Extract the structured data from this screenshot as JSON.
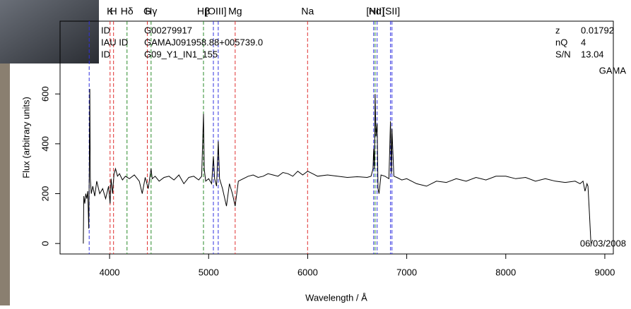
{
  "chart_data": {
    "type": "line",
    "xlabel": "Wavelength / Å",
    "ylabel": "Flux (arbitrary units)",
    "xlim": [
      3500,
      9086
    ],
    "ylim": [
      -42,
      892
    ],
    "xticks": [
      4000,
      5000,
      6000,
      7000,
      8000,
      9000
    ],
    "yticks": [
      0,
      200,
      400,
      600
    ],
    "color": "#000000",
    "x": [
      3735,
      3740,
      3750,
      3760,
      3770,
      3780,
      3790,
      3795,
      3800,
      3805,
      3815,
      3830,
      3850,
      3870,
      3900,
      3930,
      3960,
      3990,
      4005,
      4015,
      4030,
      4045,
      4060,
      4080,
      4100,
      4130,
      4160,
      4200,
      4250,
      4300,
      4330,
      4360,
      4390,
      4419,
      4430,
      4460,
      4500,
      4550,
      4600,
      4650,
      4700,
      4750,
      4800,
      4850,
      4900,
      4930,
      4948,
      4955,
      4970,
      5000,
      5030,
      5048,
      5060,
      5080,
      5097,
      5110,
      5140,
      5180,
      5210,
      5240,
      5268,
      5300,
      5350,
      5400,
      5450,
      5500,
      5550,
      5600,
      5650,
      5700,
      5750,
      5800,
      5850,
      5900,
      5950,
      6000,
      6050,
      6100,
      6200,
      6300,
      6400,
      6500,
      6600,
      6640,
      6660,
      6666,
      6675,
      6681,
      6690,
      6701,
      6710,
      6720,
      6740,
      6780,
      6820,
      6836,
      6845,
      6851,
      6870,
      6900,
      6950,
      7000,
      7100,
      7200,
      7300,
      7400,
      7500,
      7600,
      7700,
      7800,
      7900,
      8000,
      8100,
      8200,
      8300,
      8400,
      8500,
      8600,
      8700,
      8750,
      8780,
      8800,
      8820,
      8830,
      8845,
      8860
    ],
    "values": [
      0,
      190,
      160,
      200,
      180,
      210,
      60,
      300,
      620,
      260,
      200,
      230,
      190,
      250,
      200,
      220,
      180,
      230,
      160,
      260,
      200,
      280,
      300,
      270,
      280,
      255,
      270,
      260,
      275,
      250,
      200,
      265,
      220,
      300,
      260,
      270,
      250,
      265,
      270,
      255,
      275,
      240,
      265,
      270,
      255,
      270,
      520,
      300,
      250,
      260,
      240,
      350,
      260,
      230,
      410,
      260,
      220,
      150,
      240,
      200,
      150,
      250,
      260,
      270,
      275,
      265,
      270,
      280,
      275,
      270,
      285,
      280,
      270,
      290,
      275,
      290,
      280,
      270,
      275,
      270,
      265,
      268,
      265,
      270,
      300,
      380,
      300,
      600,
      430,
      480,
      220,
      200,
      275,
      270,
      260,
      490,
      280,
      460,
      270,
      265,
      255,
      260,
      240,
      230,
      250,
      245,
      260,
      250,
      265,
      255,
      270,
      270,
      260,
      265,
      250,
      260,
      250,
      245,
      250,
      240,
      250,
      210,
      240,
      230,
      120,
      0
    ],
    "lines": [
      {
        "label": "K",
        "wavelengths": [
          4005
        ],
        "color": "#e03030"
      },
      {
        "label": "H",
        "wavelengths": [
          4040
        ],
        "color": "#e03030"
      },
      {
        "label": "Hδ",
        "wavelengths": [
          4176
        ],
        "color": "#2a8a2a"
      },
      {
        "label": "G",
        "wavelengths": [
          4381
        ],
        "color": "#e03030"
      },
      {
        "label": "Hγ",
        "wavelengths": [
          4419
        ],
        "color": "#2a8a2a"
      },
      {
        "label": "Hβ",
        "wavelengths": [
          4948
        ],
        "color": "#2a8a2a"
      },
      {
        "label": "[OIII]",
        "wavelengths": [
          5048,
          5097
        ],
        "color": "#3030e0"
      },
      {
        "label": "Mg",
        "wavelengths": [
          5268
        ],
        "color": "#e03030"
      },
      {
        "label": "Na",
        "wavelengths": [
          5999
        ],
        "color": "#e03030"
      },
      {
        "label": "Hα",
        "wavelengths": [
          6681
        ],
        "color": "#2a8a2a"
      },
      {
        "label": "[NII]",
        "wavelengths": [
          6666,
          6701
        ],
        "color": "#3030e0"
      },
      {
        "label": "[SII]",
        "wavelengths": [
          6836,
          6851
        ],
        "color": "#3030e0"
      },
      {
        "wavelengths": [
          3794
        ],
        "color": "#3030e0"
      }
    ],
    "ids": [
      [
        "ID",
        "G00279917"
      ],
      [
        "IAU ID",
        "GAMAJ091958.88+005739.0"
      ],
      [
        "ID",
        "G09_Y1_IN1_155"
      ]
    ],
    "stats": [
      [
        "z",
        0.01792
      ],
      [
        "nQ",
        4
      ],
      [
        "S/N",
        13.04
      ]
    ],
    "survey": "GAMA",
    "date": "06/03/2008"
  }
}
